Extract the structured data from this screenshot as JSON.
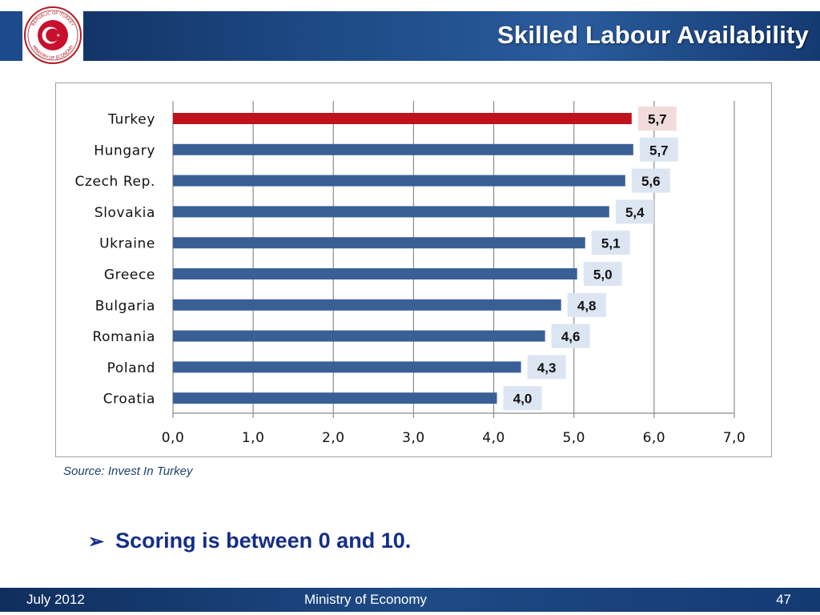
{
  "header": {
    "title": "Skilled Labour Availability"
  },
  "logo": {
    "text_top": "REPUBLIC OF TURKEY",
    "text_bottom": "MINISTRY OF ECONOMY"
  },
  "colors": {
    "highlight_bar": "#c0121c",
    "bar": "#3a5f95",
    "highlight_label_bg": "#f2dcdb",
    "label_bg": "#dce6f2"
  },
  "chart_data": {
    "type": "bar",
    "orientation": "horizontal",
    "categories": [
      "Turkey",
      "Hungary",
      "Czech Rep.",
      "Slovakia",
      "Ukraine",
      "Greece",
      "Bulgaria",
      "Romania",
      "Poland",
      "Croatia"
    ],
    "values": [
      5.7,
      5.7,
      5.6,
      5.4,
      5.1,
      5.0,
      4.8,
      4.6,
      4.3,
      4.0
    ],
    "value_labels": [
      "5,7",
      "5,7",
      "5,6",
      "5,4",
      "5,1",
      "5,0",
      "4,8",
      "4,6",
      "4,3",
      "4,0"
    ],
    "highlight": "Turkey",
    "xlim": [
      0,
      7
    ],
    "xticks": [
      0,
      1,
      2,
      3,
      4,
      5,
      6,
      7
    ],
    "xtick_labels": [
      "0,0",
      "1,0",
      "2,0",
      "3,0",
      "4,0",
      "5,0",
      "6,0",
      "7,0"
    ],
    "grid": true,
    "title": "",
    "xlabel": "",
    "ylabel": ""
  },
  "source": "Source: Invest In Turkey",
  "bullet": {
    "text": "Scoring is between 0 and 10."
  },
  "footer": {
    "date": "July 2012",
    "org": "Ministry of Economy",
    "page": "47"
  }
}
